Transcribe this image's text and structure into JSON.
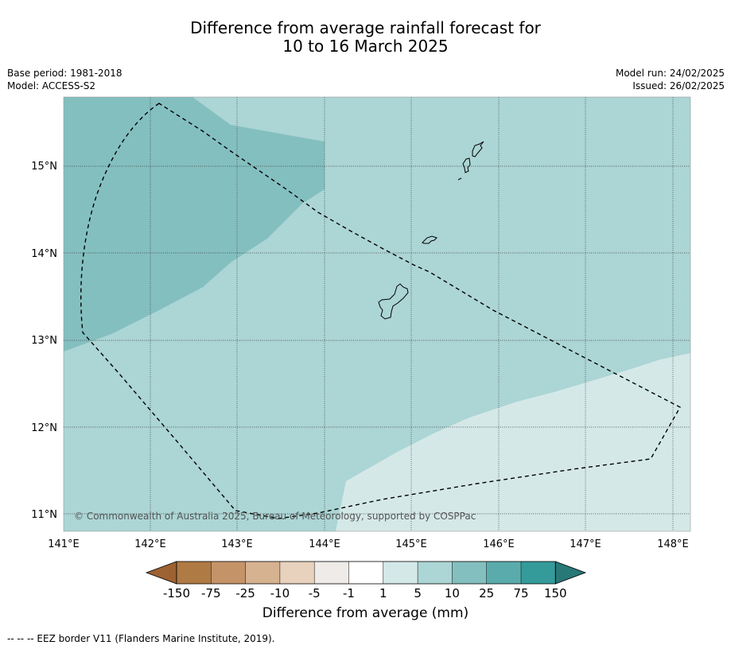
{
  "title": {
    "line1": "Difference from average rainfall forecast for",
    "line2": "10 to 16 March 2025"
  },
  "meta": {
    "base_period": "Base period: 1981-2018",
    "model": "Model: ACCESS-S2",
    "model_run": "Model run: 24/02/2025",
    "issued": "Issued: 26/02/2025"
  },
  "map": {
    "lat_labels": [
      "15°N",
      "14°N",
      "13°N",
      "12°N",
      "11°N"
    ],
    "lon_labels": [
      "141°E",
      "142°E",
      "143°E",
      "144°E",
      "145°E",
      "146°E",
      "147°E",
      "148°E"
    ],
    "copyright": "© Commonwealth of Australia 2025, Bureau of Meteorology, supported by COSPPac",
    "fill_colors": {
      "class_10_25": "#84bfbf",
      "class_5_10": "#acd5d5",
      "class_1_5": "#d5e8e8"
    },
    "coastline_color": "#000000",
    "eez_color": "#000000"
  },
  "colorbar": {
    "tick_labels": [
      "-150",
      "-75",
      "-25",
      "-10",
      "-5",
      "-1",
      "1",
      "5",
      "10",
      "25",
      "75",
      "150"
    ],
    "colors": [
      "#9d6232",
      "#b07a44",
      "#c49468",
      "#d6b291",
      "#e8d1bd",
      "#eeebe8",
      "#ffffff",
      "#d5e8e8",
      "#acd5d5",
      "#84bfbf",
      "#5aacac",
      "#359a9a",
      "#287878"
    ],
    "unit_label": "Difference from average (mm)"
  },
  "footer": {
    "eez_note": "--  --  -- EEZ border V11 (Flanders Marine Institute, 2019)."
  }
}
